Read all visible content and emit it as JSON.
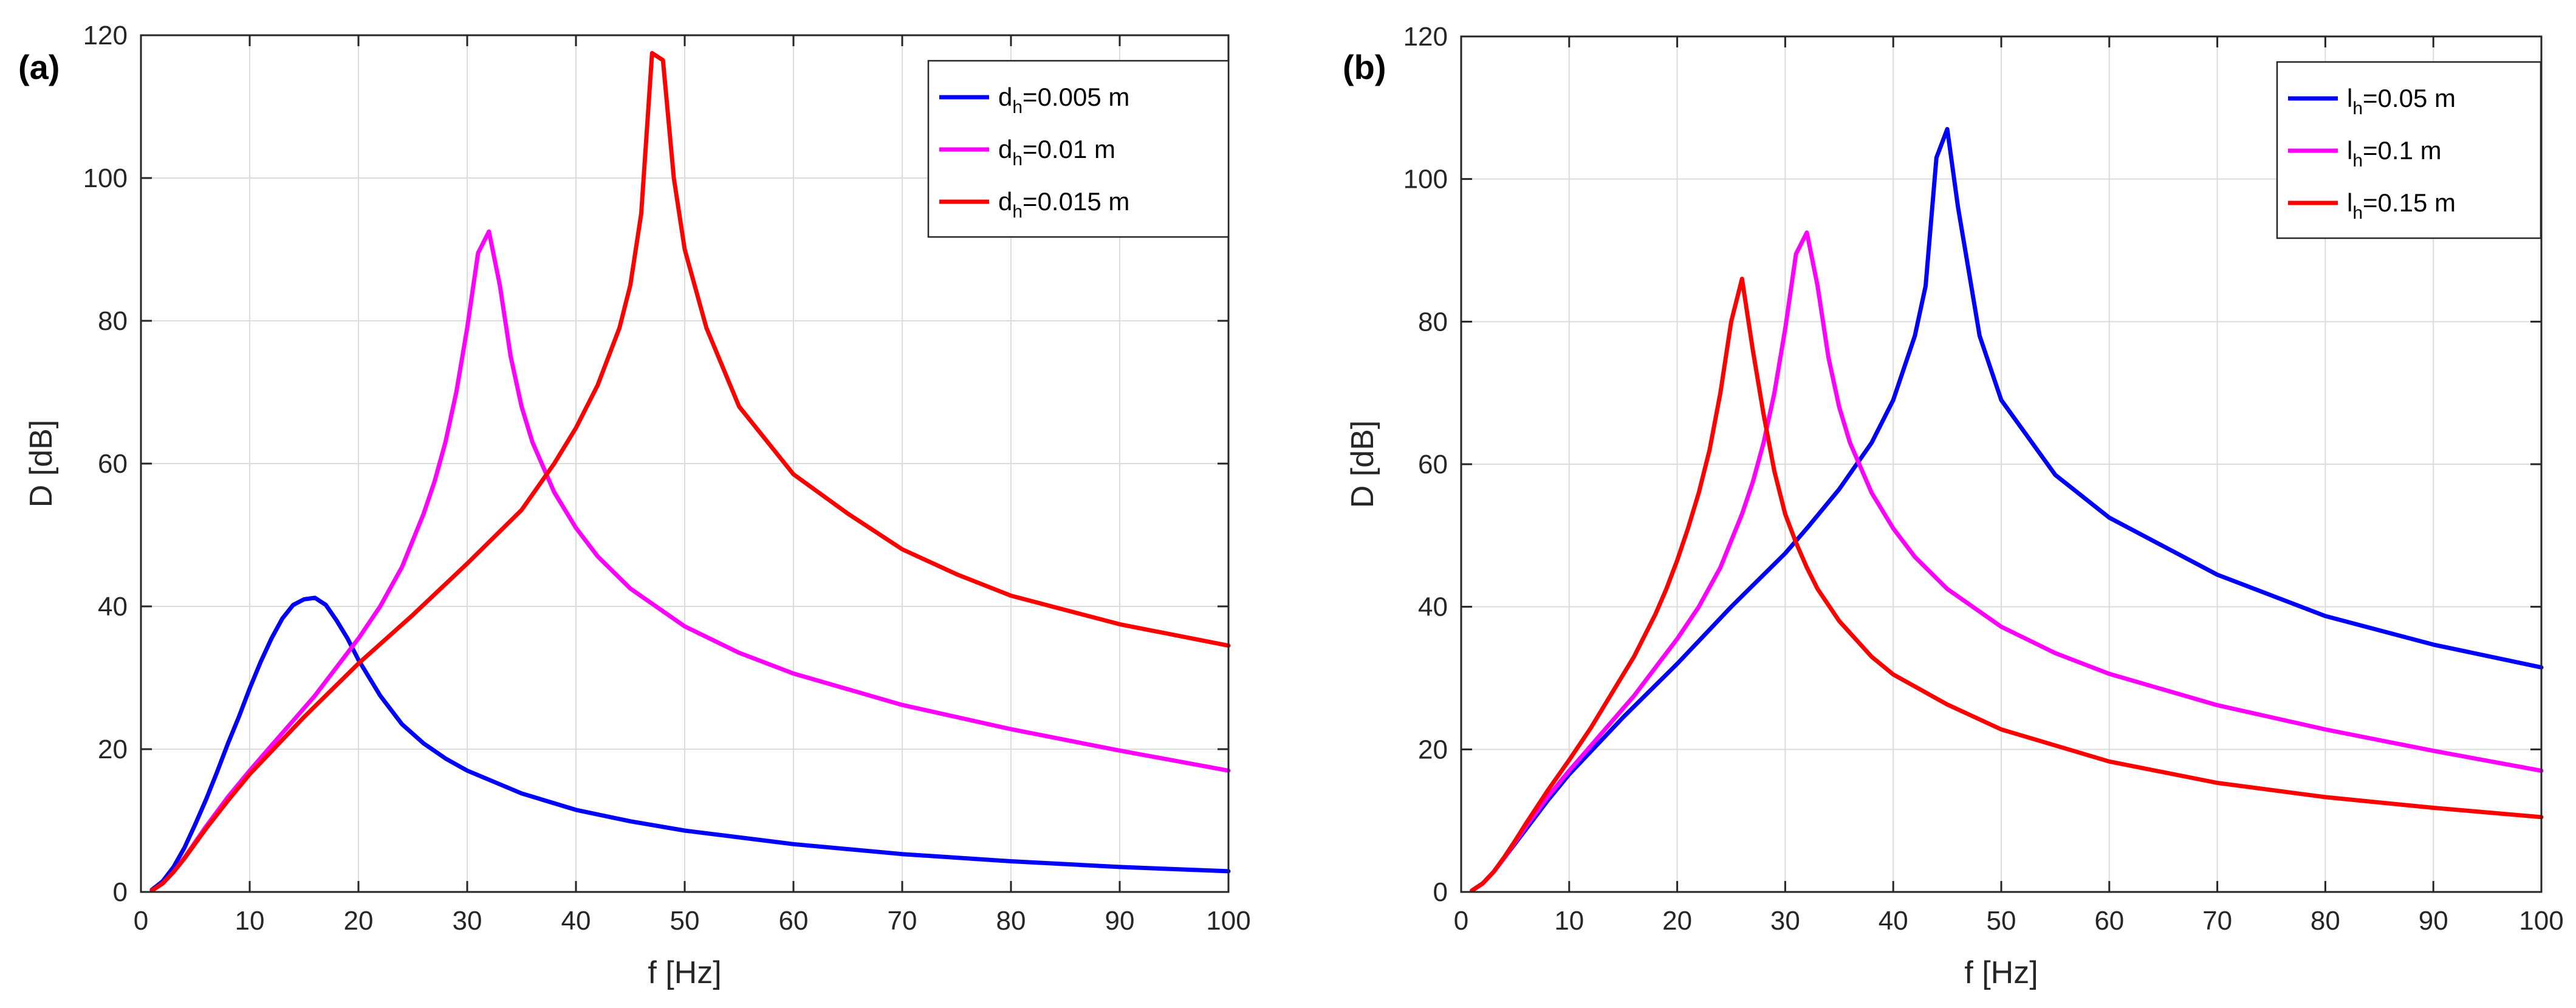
{
  "chart_data": [
    {
      "type": "line",
      "panel_label": "(a)",
      "xlabel": "f [Hz]",
      "ylabel": "D [dB]",
      "xlim": [
        0,
        100
      ],
      "ylim": [
        0,
        120
      ],
      "xticks": [
        0,
        10,
        20,
        30,
        40,
        50,
        60,
        70,
        80,
        90,
        100
      ],
      "yticks": [
        0,
        20,
        40,
        60,
        80,
        100,
        120
      ],
      "grid": true,
      "legend_position": "top-right",
      "series": [
        {
          "name": "d_h=0.005 m",
          "legend_main": "d",
          "legend_sub": "h",
          "legend_rest": "=0.005 m",
          "color": "#0000ff",
          "x": [
            1,
            2,
            3,
            4,
            5,
            6,
            7,
            8,
            9,
            10,
            11,
            12,
            13,
            14,
            15,
            16,
            17,
            18,
            19,
            20,
            22,
            24,
            26,
            28,
            30,
            35,
            40,
            45,
            50,
            60,
            70,
            80,
            90,
            100
          ],
          "y": [
            0.3,
            1.5,
            3.5,
            6.2,
            9.5,
            13,
            16.8,
            20.8,
            24.5,
            28.5,
            32.2,
            35.5,
            38.3,
            40.2,
            41,
            41.2,
            40.2,
            38,
            35.5,
            32.5,
            27.5,
            23.5,
            20.8,
            18.7,
            17,
            13.8,
            11.5,
            9.9,
            8.6,
            6.7,
            5.3,
            4.3,
            3.5,
            2.9
          ]
        },
        {
          "name": "d_h=0.01 m",
          "legend_main": "d",
          "legend_sub": "h",
          "legend_rest": "=0.01 m",
          "color": "#ff00ff",
          "x": [
            1,
            2,
            3,
            4,
            5,
            6,
            8,
            10,
            12,
            14,
            16,
            18,
            20,
            22,
            24,
            26,
            27,
            28,
            29,
            30,
            31,
            32,
            33,
            34,
            35,
            36,
            38,
            40,
            42,
            45,
            50,
            55,
            60,
            70,
            80,
            90,
            100
          ],
          "y": [
            0.2,
            1.2,
            2.8,
            4.8,
            7,
            9.2,
            13.3,
            17,
            20.5,
            24,
            27.5,
            31.5,
            35.5,
            40,
            45.5,
            53,
            57.5,
            63,
            70,
            79,
            89.5,
            92.5,
            85,
            75,
            68,
            63,
            56,
            51,
            47,
            42.5,
            37.2,
            33.5,
            30.6,
            26.2,
            22.8,
            19.8,
            17
          ]
        },
        {
          "name": "d_h=0.015 m",
          "legend_main": "d",
          "legend_sub": "h",
          "legend_rest": "=0.015 m",
          "color": "#ff0000",
          "x": [
            1,
            2,
            3,
            4,
            5,
            6,
            8,
            10,
            15,
            20,
            25,
            30,
            35,
            38,
            40,
            42,
            44,
            45,
            46,
            47,
            48,
            49,
            50,
            52,
            55,
            60,
            65,
            70,
            75,
            80,
            90,
            100
          ],
          "y": [
            0.2,
            1.2,
            2.8,
            4.7,
            6.8,
            8.9,
            12.8,
            16.5,
            24.5,
            32,
            38.8,
            46,
            53.5,
            60,
            65,
            71,
            79,
            85,
            95,
            117.5,
            116.5,
            100,
            90,
            79,
            68,
            58.5,
            53,
            48,
            44.5,
            41.5,
            37.5,
            34.5
          ]
        }
      ]
    },
    {
      "type": "line",
      "panel_label": "(b)",
      "xlabel": "f [Hz]",
      "ylabel": "D [dB]",
      "xlim": [
        0,
        100
      ],
      "ylim": [
        0,
        120
      ],
      "xticks": [
        0,
        10,
        20,
        30,
        40,
        50,
        60,
        70,
        80,
        90,
        100
      ],
      "yticks": [
        0,
        20,
        40,
        60,
        80,
        100,
        120
      ],
      "grid": true,
      "legend_position": "top-right",
      "series": [
        {
          "name": "l_h=0.05 m",
          "legend_main": "l",
          "legend_sub": "h",
          "legend_rest": "=0.05 m",
          "color": "#0000ff",
          "x": [
            1,
            2,
            3,
            4,
            5,
            6,
            8,
            10,
            15,
            20,
            25,
            30,
            32,
            35,
            38,
            40,
            42,
            43,
            44,
            45,
            46,
            47,
            48,
            50,
            55,
            60,
            70,
            80,
            90,
            100
          ],
          "y": [
            0.2,
            1.2,
            2.8,
            4.8,
            6.8,
            8.8,
            12.8,
            16.5,
            24.5,
            32,
            40,
            47.5,
            51,
            56.5,
            63,
            69,
            78,
            85,
            103,
            107,
            96,
            87,
            78,
            69,
            58.5,
            52.5,
            44.5,
            38.7,
            34.7,
            31.5
          ]
        },
        {
          "name": "l_h=0.1 m",
          "legend_main": "l",
          "legend_sub": "h",
          "legend_rest": "=0.1 m",
          "color": "#ff00ff",
          "x": [
            1,
            2,
            3,
            4,
            5,
            6,
            8,
            10,
            12,
            14,
            16,
            18,
            20,
            22,
            24,
            26,
            27,
            28,
            29,
            30,
            31,
            32,
            33,
            34,
            35,
            36,
            38,
            40,
            42,
            45,
            50,
            55,
            60,
            70,
            80,
            90,
            100
          ],
          "y": [
            0.2,
            1.2,
            2.8,
            4.8,
            7,
            9.2,
            13.3,
            17,
            20.5,
            24,
            27.5,
            31.5,
            35.5,
            40,
            45.5,
            53,
            57.5,
            63,
            70,
            79,
            89.5,
            92.5,
            85,
            75,
            68,
            63,
            56,
            51,
            47,
            42.5,
            37.2,
            33.5,
            30.6,
            26.2,
            22.8,
            19.8,
            17
          ]
        },
        {
          "name": "l_h=0.15 m",
          "legend_main": "l",
          "legend_sub": "h",
          "legend_rest": "=0.15 m",
          "color": "#ff0000",
          "x": [
            1,
            2,
            3,
            4,
            5,
            6,
            8,
            10,
            12,
            14,
            16,
            18,
            19,
            20,
            21,
            22,
            23,
            24,
            25,
            26,
            27,
            28,
            29,
            30,
            31,
            32,
            33,
            35,
            38,
            40,
            45,
            50,
            60,
            70,
            80,
            90,
            100
          ],
          "y": [
            0.2,
            1.2,
            2.8,
            4.9,
            7.2,
            9.6,
            14.2,
            18.5,
            23,
            28,
            33,
            39,
            42.5,
            46.5,
            51,
            56,
            62,
            70,
            80,
            86,
            76,
            67,
            59,
            53,
            49,
            45.5,
            42.5,
            38,
            33,
            30.5,
            26.3,
            22.8,
            18.3,
            15.3,
            13.3,
            11.8,
            10.5
          ]
        }
      ]
    }
  ]
}
